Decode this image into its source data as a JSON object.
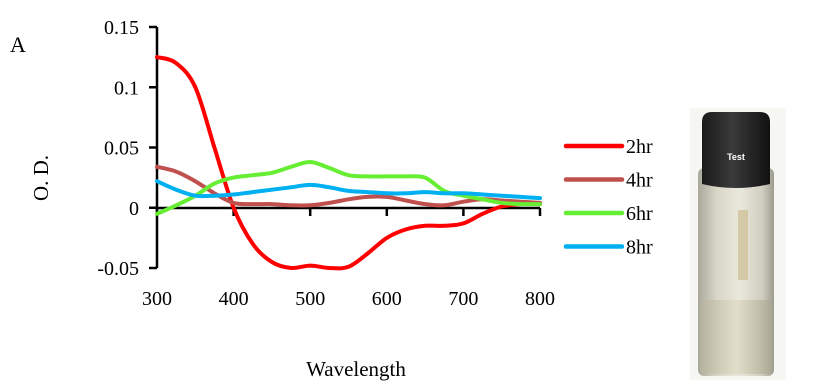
{
  "panel_label": "A",
  "photo": {
    "cap_label": "Test"
  },
  "chart_data": {
    "type": "line",
    "xlabel": "Wavelength",
    "ylabel": "O. D.",
    "xlim": [
      300,
      800
    ],
    "ylim": [
      -0.05,
      0.15
    ],
    "x_ticks": [
      "300",
      "400",
      "500",
      "600",
      "700",
      "800"
    ],
    "y_ticks": [
      "0.15",
      "0.1",
      "0.05",
      "0",
      "-0.05"
    ],
    "legend_position": "right",
    "grid": false,
    "series": [
      {
        "name": "2hr",
        "color": "#ff0000",
        "x": [
          300,
          325,
          350,
          375,
          400,
          425,
          450,
          475,
          500,
          525,
          550,
          575,
          600,
          625,
          650,
          675,
          700,
          725,
          750,
          775,
          800
        ],
        "y": [
          0.125,
          0.12,
          0.1,
          0.05,
          0.0,
          -0.03,
          -0.045,
          -0.05,
          -0.048,
          -0.05,
          -0.049,
          -0.038,
          -0.025,
          -0.018,
          -0.015,
          -0.015,
          -0.013,
          -0.005,
          0.001,
          0.003,
          0.003
        ]
      },
      {
        "name": "4hr",
        "color": "#c0504d",
        "x": [
          300,
          325,
          350,
          375,
          400,
          425,
          450,
          475,
          500,
          525,
          550,
          575,
          600,
          625,
          650,
          675,
          700,
          725,
          750,
          775,
          800
        ],
        "y": [
          0.034,
          0.03,
          0.022,
          0.012,
          0.004,
          0.003,
          0.003,
          0.002,
          0.002,
          0.004,
          0.007,
          0.009,
          0.009,
          0.006,
          0.003,
          0.002,
          0.005,
          0.007,
          0.006,
          0.005,
          0.004
        ]
      },
      {
        "name": "6hr",
        "color": "#66ee33",
        "x": [
          300,
          325,
          350,
          375,
          400,
          425,
          450,
          475,
          500,
          525,
          550,
          575,
          600,
          625,
          650,
          675,
          700,
          725,
          750,
          775,
          800
        ],
        "y": [
          -0.005,
          0.002,
          0.01,
          0.02,
          0.025,
          0.027,
          0.029,
          0.034,
          0.038,
          0.033,
          0.027,
          0.026,
          0.026,
          0.026,
          0.025,
          0.014,
          0.01,
          0.007,
          0.004,
          0.003,
          0.003
        ]
      },
      {
        "name": "8hr",
        "color": "#00b0f0",
        "x": [
          300,
          325,
          350,
          375,
          400,
          425,
          450,
          475,
          500,
          525,
          550,
          575,
          600,
          625,
          650,
          675,
          700,
          725,
          750,
          775,
          800
        ],
        "y": [
          0.022,
          0.015,
          0.01,
          0.01,
          0.011,
          0.013,
          0.015,
          0.017,
          0.019,
          0.017,
          0.014,
          0.013,
          0.012,
          0.012,
          0.013,
          0.012,
          0.012,
          0.011,
          0.01,
          0.009,
          0.008
        ]
      }
    ]
  }
}
